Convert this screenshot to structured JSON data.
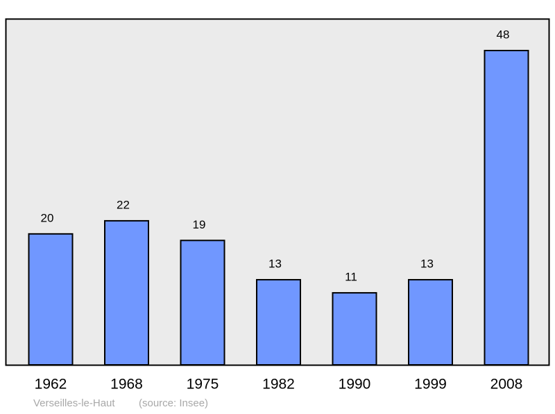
{
  "chart_data": {
    "type": "bar",
    "categories": [
      "1962",
      "1968",
      "1975",
      "1982",
      "1990",
      "1999",
      "2008"
    ],
    "values": [
      20,
      22,
      19,
      13,
      11,
      13,
      48
    ],
    "color": "#7097ff",
    "footer": {
      "place": "Verseilles-le-Haut",
      "source": "(source: Insee)"
    }
  }
}
